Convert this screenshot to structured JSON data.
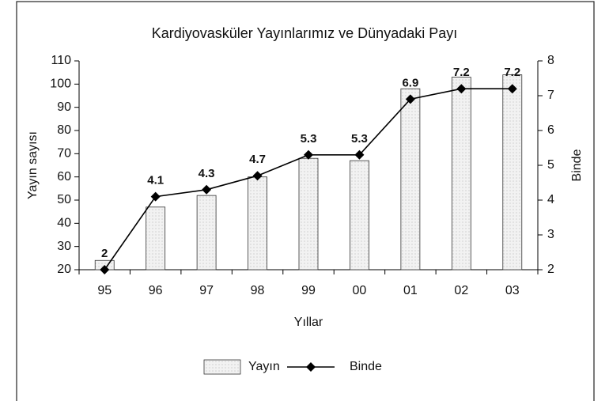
{
  "chart_data": {
    "type": "bar",
    "title": "Kardiyovasküler Yayınlarımız  ve Dünyadaki Payı",
    "x_label": "Yıllar",
    "y_label": "Yayın sayısı",
    "y2_label": "Binde",
    "categories": [
      "95",
      "96",
      "97",
      "98",
      "99",
      "00",
      "01",
      "02",
      "03"
    ],
    "series": [
      {
        "name": "Yayın",
        "type": "bar",
        "color": "#ececec",
        "values": [
          24,
          47,
          52,
          60,
          68,
          67,
          98,
          103,
          104
        ]
      },
      {
        "name": "Binde",
        "type": "line",
        "axis": "y2",
        "color": "#000000",
        "values": [
          2,
          4.1,
          4.3,
          4.7,
          5.3,
          5.3,
          6.9,
          7.2,
          7.2
        ]
      }
    ],
    "ylim": [
      20,
      110
    ],
    "yticks": [
      20,
      30,
      40,
      50,
      60,
      70,
      80,
      90,
      100,
      110
    ],
    "y2lim": [
      2,
      8
    ],
    "y2ticks": [
      2,
      3,
      4,
      5,
      6,
      7,
      8
    ],
    "legend": "bottom",
    "grid": false
  }
}
